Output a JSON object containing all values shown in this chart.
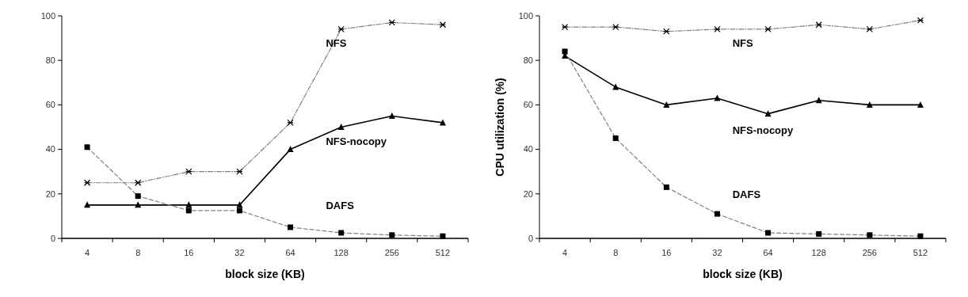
{
  "chart_data": [
    {
      "type": "line",
      "xlabel": "block size (KB)",
      "categories": [
        "4",
        "8",
        "16",
        "32",
        "64",
        "128",
        "256",
        "512"
      ],
      "ylim": [
        0,
        100
      ],
      "yticks": [
        0,
        20,
        40,
        60,
        80,
        100
      ],
      "series": [
        {
          "name": "NFS",
          "color": "#808080",
          "marker": "cross",
          "line_style": "dotted",
          "values": [
            25,
            25,
            30,
            30,
            52,
            94,
            97,
            96
          ]
        },
        {
          "name": "NFS-nocopy",
          "color": "#000000",
          "marker": "triangle",
          "line_style": "solid",
          "values": [
            15,
            15,
            15,
            15,
            40,
            50,
            55,
            52
          ]
        },
        {
          "name": "DAFS",
          "color": "#808080",
          "marker": "square",
          "line_style": "dashed",
          "values": [
            41,
            19,
            12.5,
            12.5,
            5,
            2.5,
            1.5,
            1
          ]
        }
      ]
    },
    {
      "type": "line",
      "xlabel": "block size (KB)",
      "ylabel": "CPU utilization (%)",
      "categories": [
        "4",
        "8",
        "16",
        "32",
        "64",
        "128",
        "256",
        "512"
      ],
      "ylim": [
        0,
        100
      ],
      "yticks": [
        0,
        20,
        40,
        60,
        80,
        100
      ],
      "series": [
        {
          "name": "NFS",
          "color": "#808080",
          "marker": "cross",
          "line_style": "dotted",
          "values": [
            95,
            95,
            93,
            94,
            94,
            96,
            94,
            98
          ]
        },
        {
          "name": "NFS-nocopy",
          "color": "#000000",
          "marker": "triangle",
          "line_style": "solid",
          "values": [
            82,
            68,
            60,
            63,
            56,
            62,
            60,
            60
          ]
        },
        {
          "name": "DAFS",
          "color": "#808080",
          "marker": "square",
          "line_style": "dashed",
          "values": [
            84,
            45,
            23,
            11,
            2.5,
            2,
            1.5,
            1
          ]
        }
      ]
    }
  ]
}
